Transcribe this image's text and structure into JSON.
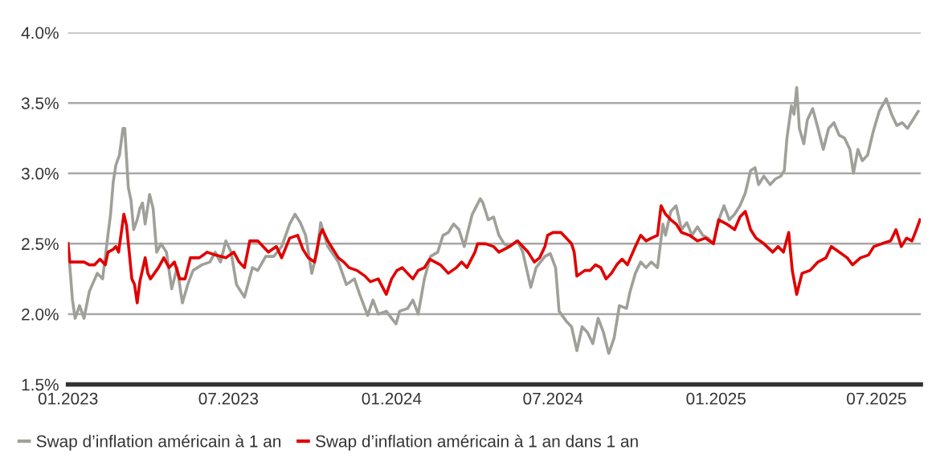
{
  "chart_data": {
    "type": "line",
    "ylim": [
      1.5,
      4.0
    ],
    "yticks": [
      {
        "value": 1.5,
        "label": "1.5%"
      },
      {
        "value": 2.0,
        "label": "2.0%"
      },
      {
        "value": 2.5,
        "label": "2.5%"
      },
      {
        "value": 3.0,
        "label": "3.0%"
      },
      {
        "value": 3.5,
        "label": "3.5%"
      },
      {
        "value": 4.0,
        "label": "4.0%"
      }
    ],
    "xlim": [
      "2023-01-01",
      "2025-08-20"
    ],
    "xticks": [
      {
        "value": "2023-01-01",
        "label": "01.2023"
      },
      {
        "value": "2023-07-01",
        "label": "07.2023"
      },
      {
        "value": "2024-01-01",
        "label": "01.2024"
      },
      {
        "value": "2024-07-01",
        "label": "07.2024"
      },
      {
        "value": "2025-01-01",
        "label": "01.2025"
      },
      {
        "value": "2025-07-01",
        "label": "07.2025"
      }
    ],
    "grid": "y",
    "legend": "bottom",
    "line_style": "solid",
    "marker": "none",
    "series": [
      {
        "name": "Swap d’inflation américain à 1 an",
        "color": "#a0a09a",
        "x": [
          "2023-01-01",
          "2023-01-06",
          "2023-01-09",
          "2023-01-14",
          "2023-01-19",
          "2023-01-25",
          "2023-02-03",
          "2023-02-09",
          "2023-02-15",
          "2023-02-18",
          "2023-02-21",
          "2023-02-24",
          "2023-02-28",
          "2023-03-04",
          "2023-03-06",
          "2023-03-10",
          "2023-03-13",
          "2023-03-16",
          "2023-03-20",
          "2023-03-23",
          "2023-03-26",
          "2023-03-29",
          "2023-04-03",
          "2023-04-07",
          "2023-04-11",
          "2023-04-16",
          "2023-04-22",
          "2023-04-28",
          "2023-05-04",
          "2023-05-10",
          "2023-05-16",
          "2023-05-22",
          "2023-06-01",
          "2023-06-10",
          "2023-06-16",
          "2023-06-22",
          "2023-06-28",
          "2023-07-04",
          "2023-07-10",
          "2023-07-19",
          "2023-07-28",
          "2023-08-03",
          "2023-08-12",
          "2023-08-21",
          "2023-08-30",
          "2023-09-08",
          "2023-09-14",
          "2023-09-20",
          "2023-09-26",
          "2023-10-03",
          "2023-10-09",
          "2023-10-13",
          "2023-10-21",
          "2023-11-02",
          "2023-11-11",
          "2023-11-20",
          "2023-11-26",
          "2023-12-05",
          "2023-12-11",
          "2023-12-17",
          "2023-12-26",
          "2024-01-01",
          "2024-01-06",
          "2024-01-10",
          "2024-01-19",
          "2024-01-25",
          "2024-01-31",
          "2024-02-07",
          "2024-02-14",
          "2024-02-22",
          "2024-02-28",
          "2024-03-05",
          "2024-03-11",
          "2024-03-17",
          "2024-03-23",
          "2024-03-26",
          "2024-04-01",
          "2024-04-06",
          "2024-04-10",
          "2024-04-13",
          "2024-04-19",
          "2024-04-25",
          "2024-05-01",
          "2024-05-07",
          "2024-05-13",
          "2024-05-22",
          "2024-05-28",
          "2024-06-06",
          "2024-06-12",
          "2024-06-22",
          "2024-06-28",
          "2024-07-04",
          "2024-07-08",
          "2024-07-16",
          "2024-07-22",
          "2024-07-28",
          "2024-08-03",
          "2024-08-09",
          "2024-08-15",
          "2024-08-21",
          "2024-08-27",
          "2024-09-02",
          "2024-09-08",
          "2024-09-14",
          "2024-09-22",
          "2024-09-26",
          "2024-10-02",
          "2024-10-08",
          "2024-10-14",
          "2024-10-20",
          "2024-10-27",
          "2024-11-02",
          "2024-11-05",
          "2024-11-11",
          "2024-11-17",
          "2024-11-23",
          "2024-11-29",
          "2024-12-05",
          "2024-12-11",
          "2024-12-17",
          "2024-12-23",
          "2024-12-29",
          "2025-01-04",
          "2025-01-10",
          "2025-01-16",
          "2025-01-22",
          "2025-01-28",
          "2025-02-03",
          "2025-02-09",
          "2025-02-14",
          "2025-02-18",
          "2025-02-24",
          "2025-03-03",
          "2025-03-09",
          "2025-03-15",
          "2025-03-19",
          "2025-03-22",
          "2025-03-27",
          "2025-03-30",
          "2025-04-02",
          "2025-04-05",
          "2025-04-10",
          "2025-04-14",
          "2025-04-20",
          "2025-04-26",
          "2025-05-02",
          "2025-05-08",
          "2025-05-14",
          "2025-05-20",
          "2025-05-26",
          "2025-06-01",
          "2025-06-05",
          "2025-06-10",
          "2025-06-15",
          "2025-06-21",
          "2025-06-27",
          "2025-07-04",
          "2025-07-12",
          "2025-07-18",
          "2025-07-24",
          "2025-07-30",
          "2025-08-05",
          "2025-08-11",
          "2025-08-17"
        ],
        "values": [
          2.5,
          2.1,
          1.97,
          2.06,
          1.97,
          2.16,
          2.29,
          2.25,
          2.56,
          2.71,
          2.94,
          3.06,
          3.13,
          3.32,
          3.32,
          2.9,
          2.81,
          2.6,
          2.67,
          2.75,
          2.79,
          2.64,
          2.85,
          2.75,
          2.44,
          2.5,
          2.44,
          2.18,
          2.33,
          2.08,
          2.21,
          2.31,
          2.35,
          2.37,
          2.44,
          2.37,
          2.52,
          2.44,
          2.21,
          2.12,
          2.33,
          2.31,
          2.41,
          2.41,
          2.48,
          2.64,
          2.71,
          2.65,
          2.56,
          2.29,
          2.44,
          2.65,
          2.48,
          2.37,
          2.21,
          2.25,
          2.14,
          1.99,
          2.1,
          2.0,
          2.02,
          1.97,
          1.93,
          2.02,
          2.04,
          2.1,
          2.0,
          2.25,
          2.41,
          2.44,
          2.56,
          2.58,
          2.64,
          2.6,
          2.48,
          2.56,
          2.71,
          2.77,
          2.82,
          2.79,
          2.67,
          2.69,
          2.56,
          2.5,
          2.48,
          2.52,
          2.44,
          2.19,
          2.33,
          2.41,
          2.43,
          2.33,
          2.02,
          1.95,
          1.91,
          1.74,
          1.91,
          1.87,
          1.79,
          1.97,
          1.87,
          1.72,
          1.83,
          2.06,
          2.04,
          2.16,
          2.29,
          2.37,
          2.33,
          2.37,
          2.33,
          2.64,
          2.56,
          2.73,
          2.77,
          2.6,
          2.65,
          2.56,
          2.62,
          2.56,
          2.54,
          2.5,
          2.67,
          2.77,
          2.67,
          2.71,
          2.77,
          2.86,
          3.02,
          3.04,
          2.92,
          2.98,
          2.92,
          2.96,
          2.98,
          3.02,
          3.25,
          3.48,
          3.42,
          3.61,
          3.32,
          3.21,
          3.38,
          3.46,
          3.32,
          3.17,
          3.32,
          3.36,
          3.27,
          3.25,
          3.17,
          3.0,
          3.17,
          3.09,
          3.13,
          3.29,
          3.44,
          3.53,
          3.42,
          3.34,
          3.36,
          3.32,
          3.38,
          3.44
        ]
      },
      {
        "name": "Swap d’inflation américain à 1 an dans 1 an",
        "color": "#e00000",
        "x": [
          "2023-01-01",
          "2023-01-03",
          "2023-01-09",
          "2023-01-19",
          "2023-01-25",
          "2023-01-31",
          "2023-02-03",
          "2023-02-06",
          "2023-02-12",
          "2023-02-15",
          "2023-02-21",
          "2023-02-24",
          "2023-02-27",
          "2023-03-05",
          "2023-03-08",
          "2023-03-11",
          "2023-03-14",
          "2023-03-17",
          "2023-03-20",
          "2023-03-23",
          "2023-03-29",
          "2023-04-01",
          "2023-04-04",
          "2023-04-13",
          "2023-04-19",
          "2023-04-25",
          "2023-05-01",
          "2023-05-07",
          "2023-05-13",
          "2023-05-19",
          "2023-05-29",
          "2023-06-07",
          "2023-06-16",
          "2023-06-28",
          "2023-07-07",
          "2023-07-13",
          "2023-07-19",
          "2023-07-25",
          "2023-08-03",
          "2023-08-09",
          "2023-08-15",
          "2023-08-24",
          "2023-08-30",
          "2023-09-08",
          "2023-09-17",
          "2023-09-23",
          "2023-09-29",
          "2023-10-06",
          "2023-10-12",
          "2023-10-15",
          "2023-10-21",
          "2023-10-27",
          "2023-11-02",
          "2023-11-08",
          "2023-11-14",
          "2023-11-23",
          "2023-12-02",
          "2023-12-08",
          "2023-12-17",
          "2023-12-26",
          "2024-01-01",
          "2024-01-07",
          "2024-01-13",
          "2024-01-19",
          "2024-01-25",
          "2024-01-31",
          "2024-02-07",
          "2024-02-13",
          "2024-02-19",
          "2024-02-25",
          "2024-03-05",
          "2024-03-14",
          "2024-03-20",
          "2024-03-26",
          "2024-04-04",
          "2024-04-07",
          "2024-04-16",
          "2024-04-25",
          "2024-05-01",
          "2024-05-07",
          "2024-05-13",
          "2024-05-22",
          "2024-05-28",
          "2024-06-03",
          "2024-06-10",
          "2024-06-16",
          "2024-06-22",
          "2024-06-25",
          "2024-07-01",
          "2024-07-10",
          "2024-07-16",
          "2024-07-22",
          "2024-07-25",
          "2024-07-28",
          "2024-08-06",
          "2024-08-12",
          "2024-08-18",
          "2024-08-24",
          "2024-08-30",
          "2024-09-05",
          "2024-09-11",
          "2024-09-17",
          "2024-09-23",
          "2024-10-02",
          "2024-10-08",
          "2024-10-14",
          "2024-10-20",
          "2024-10-27",
          "2024-10-31",
          "2024-11-05",
          "2024-11-11",
          "2024-11-17",
          "2024-11-23",
          "2024-12-02",
          "2024-12-11",
          "2024-12-20",
          "2024-12-29",
          "2025-01-04",
          "2025-01-13",
          "2025-01-22",
          "2025-01-28",
          "2025-02-03",
          "2025-02-09",
          "2025-02-15",
          "2025-02-24",
          "2025-03-06",
          "2025-03-12",
          "2025-03-18",
          "2025-03-24",
          "2025-03-28",
          "2025-04-02",
          "2025-04-08",
          "2025-04-17",
          "2025-04-26",
          "2025-05-05",
          "2025-05-11",
          "2025-05-20",
          "2025-05-29",
          "2025-06-04",
          "2025-06-13",
          "2025-06-22",
          "2025-06-28",
          "2025-07-07",
          "2025-07-17",
          "2025-07-23",
          "2025-07-29",
          "2025-08-04",
          "2025-08-10",
          "2025-08-15",
          "2025-08-19"
        ],
        "values": [
          2.5,
          2.37,
          2.37,
          2.37,
          2.35,
          2.35,
          2.37,
          2.39,
          2.35,
          2.44,
          2.46,
          2.48,
          2.44,
          2.71,
          2.63,
          2.44,
          2.25,
          2.21,
          2.08,
          2.23,
          2.4,
          2.29,
          2.25,
          2.33,
          2.4,
          2.33,
          2.37,
          2.25,
          2.25,
          2.4,
          2.4,
          2.44,
          2.42,
          2.4,
          2.44,
          2.37,
          2.33,
          2.52,
          2.52,
          2.48,
          2.44,
          2.48,
          2.4,
          2.54,
          2.56,
          2.46,
          2.4,
          2.37,
          2.56,
          2.6,
          2.52,
          2.46,
          2.4,
          2.37,
          2.33,
          2.31,
          2.27,
          2.23,
          2.25,
          2.14,
          2.25,
          2.31,
          2.33,
          2.29,
          2.25,
          2.31,
          2.33,
          2.39,
          2.37,
          2.35,
          2.29,
          2.33,
          2.37,
          2.33,
          2.44,
          2.5,
          2.5,
          2.48,
          2.44,
          2.46,
          2.48,
          2.52,
          2.48,
          2.44,
          2.37,
          2.4,
          2.48,
          2.56,
          2.58,
          2.58,
          2.54,
          2.5,
          2.44,
          2.27,
          2.31,
          2.31,
          2.35,
          2.33,
          2.25,
          2.29,
          2.35,
          2.39,
          2.35,
          2.48,
          2.56,
          2.52,
          2.54,
          2.56,
          2.77,
          2.71,
          2.67,
          2.64,
          2.58,
          2.56,
          2.52,
          2.54,
          2.5,
          2.67,
          2.64,
          2.6,
          2.69,
          2.73,
          2.6,
          2.54,
          2.5,
          2.44,
          2.48,
          2.44,
          2.58,
          2.31,
          2.14,
          2.29,
          2.31,
          2.37,
          2.4,
          2.48,
          2.44,
          2.4,
          2.35,
          2.4,
          2.42,
          2.48,
          2.5,
          2.52,
          2.6,
          2.48,
          2.54,
          2.52,
          2.6,
          2.67
        ]
      }
    ]
  }
}
